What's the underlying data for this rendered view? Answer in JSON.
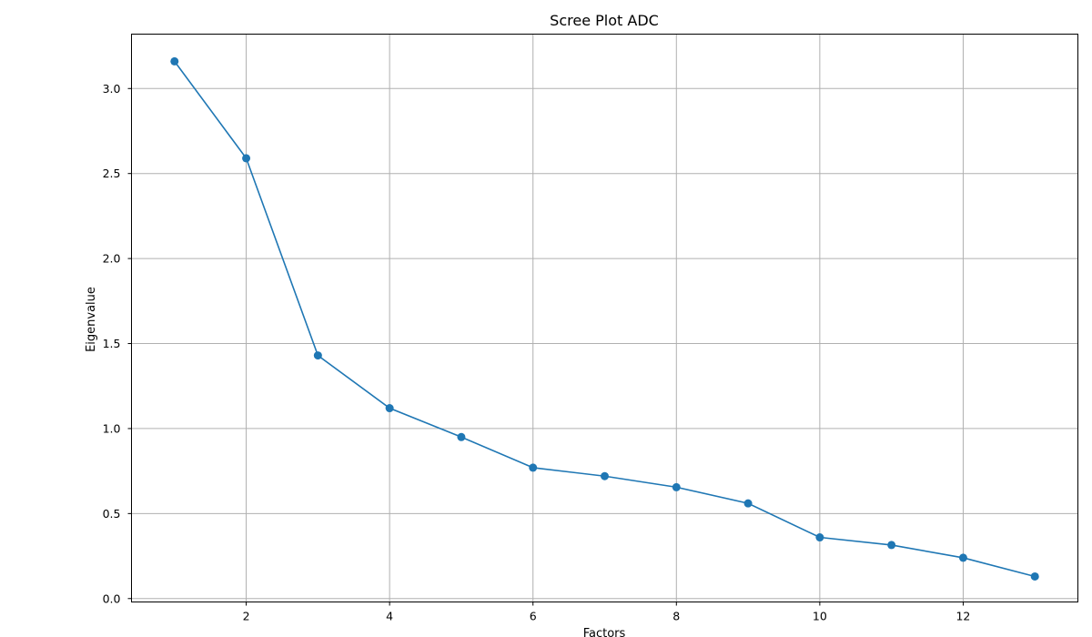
{
  "chart_data": {
    "type": "line",
    "title": "Scree Plot ADC",
    "xlabel": "Factors",
    "ylabel": "Eigenvalue",
    "xlim": [
      0.4,
      13.6
    ],
    "ylim": [
      -0.02,
      3.32
    ],
    "xticks": [
      2,
      4,
      6,
      8,
      10,
      12
    ],
    "xtick_labels": [
      "2",
      "4",
      "6",
      "8",
      "10",
      "12"
    ],
    "yticks": [
      0.0,
      0.5,
      1.0,
      1.5,
      2.0,
      2.5,
      3.0
    ],
    "ytick_labels": [
      "0.0",
      "0.5",
      "1.0",
      "1.5",
      "2.0",
      "2.5",
      "3.0"
    ],
    "grid": true,
    "series": [
      {
        "x": [
          1,
          2,
          3,
          4,
          5,
          6,
          7,
          8,
          9,
          10,
          11,
          12,
          13
        ],
        "values": [
          3.16,
          2.59,
          1.43,
          1.12,
          0.95,
          0.77,
          0.72,
          0.655,
          0.56,
          0.36,
          0.315,
          0.24,
          0.13
        ],
        "marker": "circle",
        "color": "#1f77b4"
      }
    ]
  }
}
